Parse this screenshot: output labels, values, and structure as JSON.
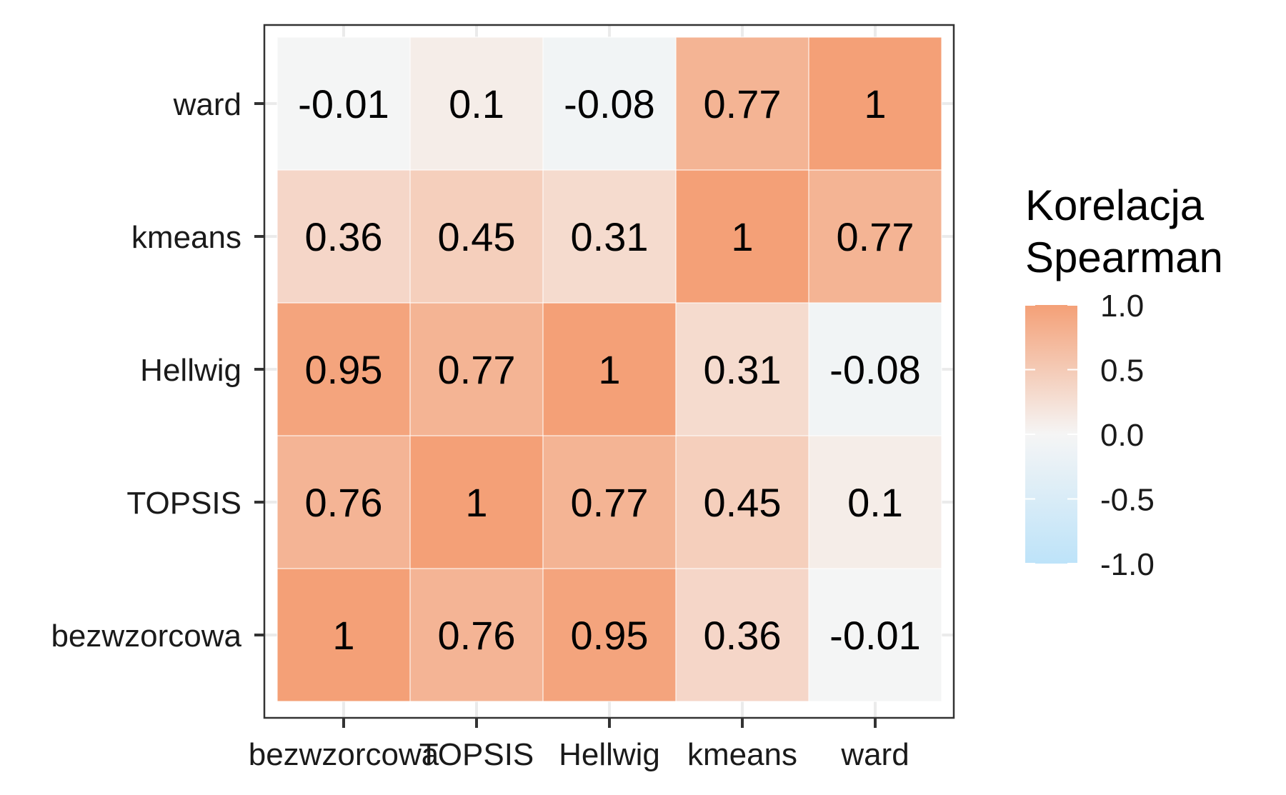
{
  "chart_data": {
    "type": "heatmap",
    "title": "",
    "xlabel": "",
    "ylabel": "",
    "x_categories": [
      "bezwzorcowa",
      "TOPSIS",
      "Hellwig",
      "kmeans",
      "ward"
    ],
    "y_categories": [
      "bezwzorcowa",
      "TOPSIS",
      "Hellwig",
      "kmeans",
      "ward"
    ],
    "values": [
      [
        1,
        0.76,
        0.95,
        0.36,
        -0.01
      ],
      [
        0.76,
        1,
        0.77,
        0.45,
        0.1
      ],
      [
        0.95,
        0.77,
        1,
        0.31,
        -0.08
      ],
      [
        0.36,
        0.45,
        0.31,
        1,
        0.77
      ],
      [
        -0.01,
        0.1,
        -0.08,
        0.77,
        1
      ]
    ],
    "labels": [
      [
        "1",
        "0.76",
        "0.95",
        "0.36",
        "-0.01"
      ],
      [
        "0.76",
        "1",
        "0.77",
        "0.45",
        "0.1"
      ],
      [
        "0.95",
        "0.77",
        "1",
        "0.31",
        "-0.08"
      ],
      [
        "0.36",
        "0.45",
        "0.31",
        "1",
        "0.77"
      ],
      [
        "-0.01",
        "0.1",
        "-0.08",
        "0.77",
        "1"
      ]
    ],
    "legend": {
      "title_lines": [
        "Korelacja",
        "Spearman"
      ],
      "ticks": [
        1.0,
        0.5,
        0.0,
        -0.5,
        -1.0
      ],
      "tick_labels": [
        "1.0",
        "0.5",
        "0.0",
        "-0.5",
        "-1.0"
      ],
      "range": [
        -1,
        1
      ],
      "placement": "right"
    },
    "colors": {
      "high": "#f4a077",
      "mid": "#f5f5f5",
      "low": "#bde3f9",
      "panel_border": "#333333",
      "grid": "#ebebeb",
      "tile_border": "#ffffff"
    }
  }
}
